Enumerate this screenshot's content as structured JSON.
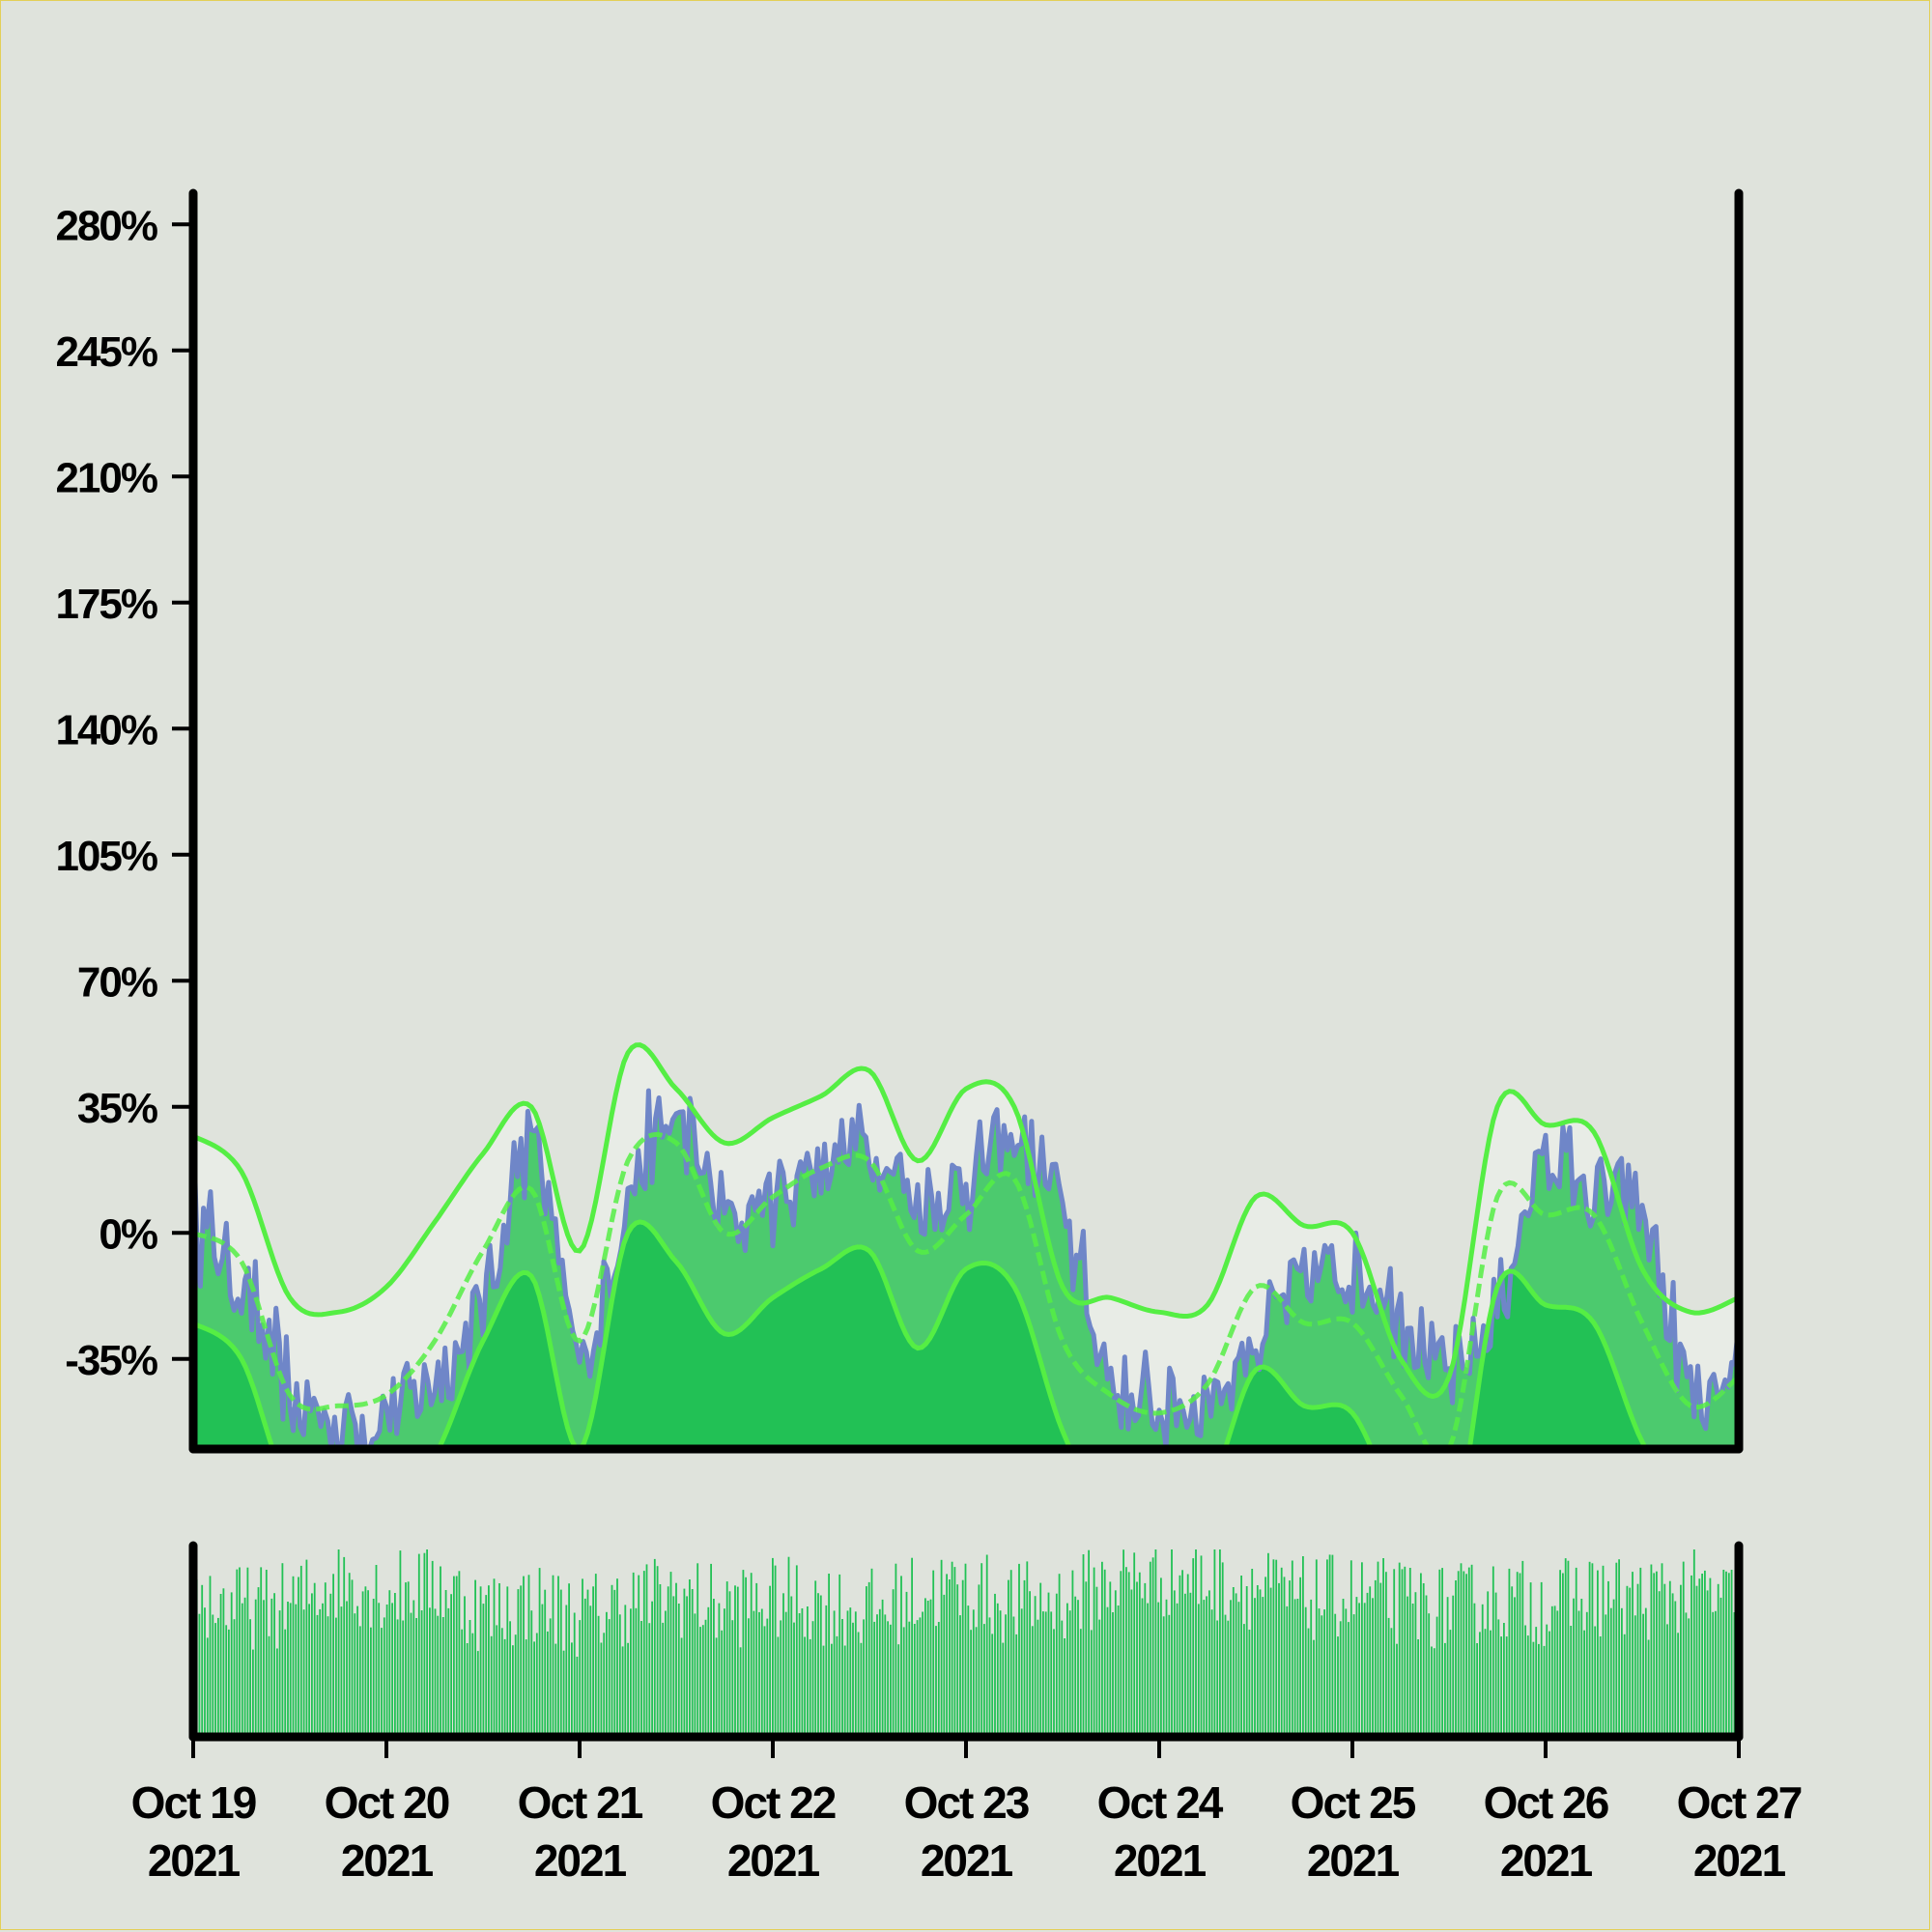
{
  "chart_data": {
    "type": "area",
    "title": "",
    "xlabel": "",
    "ylabel": "",
    "x_range": [
      "2021-10-19",
      "2021-10-27"
    ],
    "ylim": [
      -60,
      290
    ],
    "y_ticks": [
      -35,
      0,
      35,
      70,
      105,
      140,
      175,
      210,
      245,
      280
    ],
    "y_tick_labels": [
      "-35%",
      "0%",
      "35%",
      "70%",
      "105%",
      "140%",
      "175%",
      "210%",
      "245%",
      "280%"
    ],
    "x_ticks": [
      {
        "top": "Oct 19",
        "bottom": "2021"
      },
      {
        "top": "Oct 20",
        "bottom": "2021"
      },
      {
        "top": "Oct 21",
        "bottom": "2021"
      },
      {
        "top": "Oct 22",
        "bottom": "2021"
      },
      {
        "top": "Oct 23",
        "bottom": "2021"
      },
      {
        "top": "Oct 24",
        "bottom": "2021"
      },
      {
        "top": "Oct 25",
        "bottom": "2021"
      },
      {
        "top": "Oct 26",
        "bottom": "2021"
      },
      {
        "top": "Oct 27",
        "bottom": "2021"
      }
    ],
    "grid": false,
    "legend": "none",
    "colors": {
      "price": "#6f86c8",
      "band_fill": "#4cca6e",
      "lower_fill": "#22c155",
      "band_line": "#55ee44",
      "upper_region": "#e8ece6",
      "volume": "#22c155",
      "axis": "#000000",
      "background": "#dfe3dc"
    },
    "series": [
      {
        "role": "price",
        "x": [
          0,
          0.25,
          0.5,
          0.75,
          1,
          1.25,
          1.5,
          1.75,
          2,
          2.25,
          2.5,
          2.75,
          3,
          3.25,
          3.5,
          3.75,
          4,
          4.25,
          4.5,
          4.75,
          5,
          5.25,
          5.5,
          5.75,
          6,
          6.25,
          6.5,
          6.75,
          7,
          7.25,
          7.5,
          7.75,
          8
        ],
        "y": [
          5,
          -15,
          -45,
          -52,
          -50,
          -40,
          -20,
          25,
          -35,
          10,
          30,
          5,
          10,
          20,
          25,
          10,
          15,
          25,
          5,
          -40,
          -48,
          -45,
          -30,
          -15,
          -10,
          -20,
          -40,
          -20,
          20,
          10,
          5,
          -45,
          -45
        ]
      },
      {
        "role": "upper-band",
        "x": [
          0,
          0.25,
          0.5,
          0.75,
          1,
          1.25,
          1.5,
          1.75,
          2,
          2.25,
          2.5,
          2.75,
          3,
          3.25,
          3.5,
          3.75,
          4,
          4.25,
          4.5,
          4.75,
          5,
          5.25,
          5.5,
          5.75,
          6,
          6.25,
          6.5,
          6.75,
          7,
          7.25,
          7.5,
          7.75,
          8
        ],
        "y": [
          27,
          17,
          -18,
          -22,
          -15,
          3,
          22,
          35,
          -5,
          50,
          40,
          25,
          32,
          38,
          45,
          20,
          40,
          35,
          -15,
          -18,
          -22,
          -20,
          10,
          2,
          0,
          -35,
          -40,
          35,
          30,
          28,
          -10,
          -22,
          -18
        ]
      },
      {
        "role": "middle-band",
        "x": [
          0,
          0.25,
          0.5,
          0.75,
          1,
          1.25,
          1.5,
          1.75,
          2,
          2.25,
          2.5,
          2.75,
          3,
          3.25,
          3.5,
          3.75,
          4,
          4.25,
          4.5,
          4.75,
          5,
          5.25,
          5.5,
          5.75,
          6,
          6.25,
          6.5,
          6.75,
          7,
          7.25,
          7.5,
          7.75,
          8
        ],
        "y": [
          0,
          -8,
          -45,
          -48,
          -45,
          -30,
          -5,
          12,
          -30,
          20,
          25,
          0,
          10,
          18,
          20,
          -5,
          5,
          15,
          -30,
          -45,
          -50,
          -42,
          -15,
          -25,
          -25,
          -45,
          -60,
          10,
          5,
          5,
          -25,
          -48,
          -40
        ]
      },
      {
        "role": "lower-band",
        "x": [
          0,
          0.25,
          0.5,
          0.75,
          1,
          1.25,
          1.5,
          1.75,
          2,
          2.25,
          2.5,
          2.75,
          3,
          3.25,
          3.5,
          3.75,
          4,
          4.25,
          4.5,
          4.75,
          5,
          5.25,
          5.5,
          5.75,
          6,
          6.25,
          6.5,
          6.75,
          7,
          7.25,
          7.5,
          7.75,
          8
        ],
        "y": [
          -25,
          -35,
          -72,
          -78,
          -76,
          -62,
          -30,
          -12,
          -60,
          0,
          -8,
          -28,
          -18,
          -10,
          -5,
          -32,
          -10,
          -15,
          -55,
          -80,
          -75,
          -72,
          -38,
          -48,
          -50,
          -78,
          -90,
          -15,
          -20,
          -25,
          -58,
          -78,
          -72
        ]
      }
    ],
    "volume": {
      "x": [
        0,
        0.25,
        0.5,
        0.75,
        1,
        1.25,
        1.5,
        1.75,
        2,
        2.25,
        2.5,
        2.75,
        3,
        3.25,
        3.5,
        3.75,
        4,
        4.25,
        4.5,
        4.75,
        5,
        5.25,
        5.5,
        5.75,
        6,
        6.25,
        6.5,
        6.75,
        7,
        7.25,
        7.5,
        7.75,
        8
      ],
      "values": [
        0.72,
        0.68,
        0.7,
        0.82,
        0.76,
        0.8,
        0.66,
        0.7,
        0.64,
        0.7,
        0.74,
        0.68,
        0.72,
        0.7,
        0.66,
        0.74,
        0.76,
        0.7,
        0.72,
        0.8,
        0.84,
        0.82,
        0.78,
        0.72,
        0.74,
        0.7,
        0.68,
        0.72,
        0.7,
        0.74,
        0.72,
        0.76,
        0.7
      ]
    }
  }
}
